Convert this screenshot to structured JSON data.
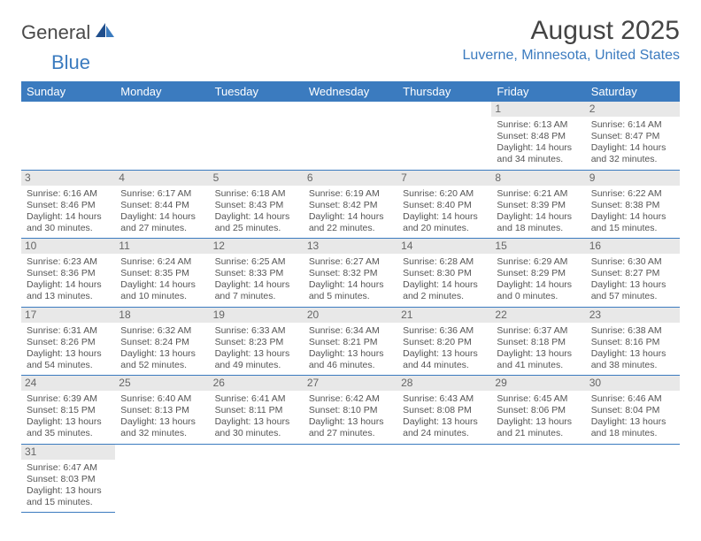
{
  "logo": {
    "word1": "General",
    "word2": "Blue"
  },
  "title": "August 2025",
  "location": "Luverne, Minnesota, United States",
  "colors": {
    "header_bg": "#3b7bbf",
    "header_text": "#ffffff",
    "border": "#3b7bbf",
    "daynum_bg": "#e8e8e8",
    "text": "#555555",
    "title_text": "#444444"
  },
  "weekdays": [
    "Sunday",
    "Monday",
    "Tuesday",
    "Wednesday",
    "Thursday",
    "Friday",
    "Saturday"
  ],
  "weeks": [
    [
      null,
      null,
      null,
      null,
      null,
      {
        "n": "1",
        "sr": "Sunrise: 6:13 AM",
        "ss": "Sunset: 8:48 PM",
        "d1": "Daylight: 14 hours",
        "d2": "and 34 minutes."
      },
      {
        "n": "2",
        "sr": "Sunrise: 6:14 AM",
        "ss": "Sunset: 8:47 PM",
        "d1": "Daylight: 14 hours",
        "d2": "and 32 minutes."
      }
    ],
    [
      {
        "n": "3",
        "sr": "Sunrise: 6:16 AM",
        "ss": "Sunset: 8:46 PM",
        "d1": "Daylight: 14 hours",
        "d2": "and 30 minutes."
      },
      {
        "n": "4",
        "sr": "Sunrise: 6:17 AM",
        "ss": "Sunset: 8:44 PM",
        "d1": "Daylight: 14 hours",
        "d2": "and 27 minutes."
      },
      {
        "n": "5",
        "sr": "Sunrise: 6:18 AM",
        "ss": "Sunset: 8:43 PM",
        "d1": "Daylight: 14 hours",
        "d2": "and 25 minutes."
      },
      {
        "n": "6",
        "sr": "Sunrise: 6:19 AM",
        "ss": "Sunset: 8:42 PM",
        "d1": "Daylight: 14 hours",
        "d2": "and 22 minutes."
      },
      {
        "n": "7",
        "sr": "Sunrise: 6:20 AM",
        "ss": "Sunset: 8:40 PM",
        "d1": "Daylight: 14 hours",
        "d2": "and 20 minutes."
      },
      {
        "n": "8",
        "sr": "Sunrise: 6:21 AM",
        "ss": "Sunset: 8:39 PM",
        "d1": "Daylight: 14 hours",
        "d2": "and 18 minutes."
      },
      {
        "n": "9",
        "sr": "Sunrise: 6:22 AM",
        "ss": "Sunset: 8:38 PM",
        "d1": "Daylight: 14 hours",
        "d2": "and 15 minutes."
      }
    ],
    [
      {
        "n": "10",
        "sr": "Sunrise: 6:23 AM",
        "ss": "Sunset: 8:36 PM",
        "d1": "Daylight: 14 hours",
        "d2": "and 13 minutes."
      },
      {
        "n": "11",
        "sr": "Sunrise: 6:24 AM",
        "ss": "Sunset: 8:35 PM",
        "d1": "Daylight: 14 hours",
        "d2": "and 10 minutes."
      },
      {
        "n": "12",
        "sr": "Sunrise: 6:25 AM",
        "ss": "Sunset: 8:33 PM",
        "d1": "Daylight: 14 hours",
        "d2": "and 7 minutes."
      },
      {
        "n": "13",
        "sr": "Sunrise: 6:27 AM",
        "ss": "Sunset: 8:32 PM",
        "d1": "Daylight: 14 hours",
        "d2": "and 5 minutes."
      },
      {
        "n": "14",
        "sr": "Sunrise: 6:28 AM",
        "ss": "Sunset: 8:30 PM",
        "d1": "Daylight: 14 hours",
        "d2": "and 2 minutes."
      },
      {
        "n": "15",
        "sr": "Sunrise: 6:29 AM",
        "ss": "Sunset: 8:29 PM",
        "d1": "Daylight: 14 hours",
        "d2": "and 0 minutes."
      },
      {
        "n": "16",
        "sr": "Sunrise: 6:30 AM",
        "ss": "Sunset: 8:27 PM",
        "d1": "Daylight: 13 hours",
        "d2": "and 57 minutes."
      }
    ],
    [
      {
        "n": "17",
        "sr": "Sunrise: 6:31 AM",
        "ss": "Sunset: 8:26 PM",
        "d1": "Daylight: 13 hours",
        "d2": "and 54 minutes."
      },
      {
        "n": "18",
        "sr": "Sunrise: 6:32 AM",
        "ss": "Sunset: 8:24 PM",
        "d1": "Daylight: 13 hours",
        "d2": "and 52 minutes."
      },
      {
        "n": "19",
        "sr": "Sunrise: 6:33 AM",
        "ss": "Sunset: 8:23 PM",
        "d1": "Daylight: 13 hours",
        "d2": "and 49 minutes."
      },
      {
        "n": "20",
        "sr": "Sunrise: 6:34 AM",
        "ss": "Sunset: 8:21 PM",
        "d1": "Daylight: 13 hours",
        "d2": "and 46 minutes."
      },
      {
        "n": "21",
        "sr": "Sunrise: 6:36 AM",
        "ss": "Sunset: 8:20 PM",
        "d1": "Daylight: 13 hours",
        "d2": "and 44 minutes."
      },
      {
        "n": "22",
        "sr": "Sunrise: 6:37 AM",
        "ss": "Sunset: 8:18 PM",
        "d1": "Daylight: 13 hours",
        "d2": "and 41 minutes."
      },
      {
        "n": "23",
        "sr": "Sunrise: 6:38 AM",
        "ss": "Sunset: 8:16 PM",
        "d1": "Daylight: 13 hours",
        "d2": "and 38 minutes."
      }
    ],
    [
      {
        "n": "24",
        "sr": "Sunrise: 6:39 AM",
        "ss": "Sunset: 8:15 PM",
        "d1": "Daylight: 13 hours",
        "d2": "and 35 minutes."
      },
      {
        "n": "25",
        "sr": "Sunrise: 6:40 AM",
        "ss": "Sunset: 8:13 PM",
        "d1": "Daylight: 13 hours",
        "d2": "and 32 minutes."
      },
      {
        "n": "26",
        "sr": "Sunrise: 6:41 AM",
        "ss": "Sunset: 8:11 PM",
        "d1": "Daylight: 13 hours",
        "d2": "and 30 minutes."
      },
      {
        "n": "27",
        "sr": "Sunrise: 6:42 AM",
        "ss": "Sunset: 8:10 PM",
        "d1": "Daylight: 13 hours",
        "d2": "and 27 minutes."
      },
      {
        "n": "28",
        "sr": "Sunrise: 6:43 AM",
        "ss": "Sunset: 8:08 PM",
        "d1": "Daylight: 13 hours",
        "d2": "and 24 minutes."
      },
      {
        "n": "29",
        "sr": "Sunrise: 6:45 AM",
        "ss": "Sunset: 8:06 PM",
        "d1": "Daylight: 13 hours",
        "d2": "and 21 minutes."
      },
      {
        "n": "30",
        "sr": "Sunrise: 6:46 AM",
        "ss": "Sunset: 8:04 PM",
        "d1": "Daylight: 13 hours",
        "d2": "and 18 minutes."
      }
    ],
    [
      {
        "n": "31",
        "sr": "Sunrise: 6:47 AM",
        "ss": "Sunset: 8:03 PM",
        "d1": "Daylight: 13 hours",
        "d2": "and 15 minutes."
      },
      null,
      null,
      null,
      null,
      null,
      null
    ]
  ]
}
